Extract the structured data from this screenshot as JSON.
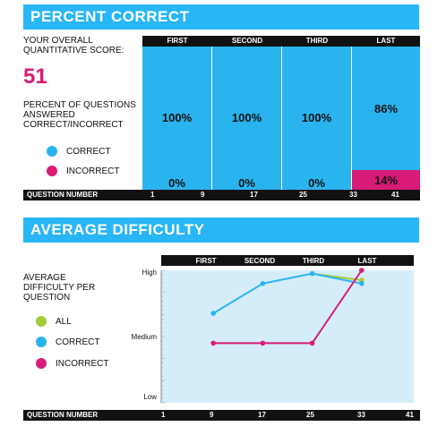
{
  "pc": {
    "title": "PERCENT CORRECT",
    "score_label": "YOUR OVERALL QUANTITATIVE SCORE:",
    "score": "51",
    "pct_label": "PERCENT OF QUESTIONS ANSWERED CORRECT/INCORRECT",
    "legend": [
      {
        "label": "CORRECT",
        "color": "#2ab4ef"
      },
      {
        "label": "INCORRECT",
        "color": "#d81b77"
      }
    ],
    "sections": [
      {
        "name": "FIRST",
        "correct": 100,
        "incorrect": 0,
        "correct_label": "100%",
        "incorrect_label": "0%"
      },
      {
        "name": "SECOND",
        "correct": 100,
        "incorrect": 0,
        "correct_label": "100%",
        "incorrect_label": "0%"
      },
      {
        "name": "THIRD",
        "correct": 100,
        "incorrect": 0,
        "correct_label": "100%",
        "incorrect_label": "0%"
      },
      {
        "name": "LAST",
        "correct": 86,
        "incorrect": 14,
        "correct_label": "86%",
        "incorrect_label": "14%"
      }
    ],
    "question_label": "QUESTION NUMBER",
    "question_ticks": [
      "1",
      "9",
      "17",
      "25",
      "33",
      "41"
    ]
  },
  "ad": {
    "title": "AVERAGE DIFFICULTY",
    "label": "AVERAGE DIFFICULTY PER QUESTION",
    "legend": [
      {
        "label": "ALL",
        "color": "#a4cc3a"
      },
      {
        "label": "CORRECT",
        "color": "#2ab4ef"
      },
      {
        "label": "INCORRECT",
        "color": "#d81b77"
      }
    ],
    "sections": [
      "FIRST",
      "SECOND",
      "THIRD",
      "LAST"
    ],
    "question_label": "QUESTION NUMBER",
    "question_ticks": [
      "1",
      "9",
      "17",
      "25",
      "33",
      "41"
    ]
  },
  "chart_data": {
    "type": "line",
    "x": [
      9,
      17,
      25,
      33
    ],
    "ylabel_ticks": [
      "High",
      "Medium",
      "Low"
    ],
    "ylim": [
      0,
      2
    ],
    "series": [
      {
        "name": "ALL",
        "color": "#a4cc3a",
        "values": [
          null,
          null,
          1.95,
          1.85
        ]
      },
      {
        "name": "CORRECT",
        "color": "#2ab4ef",
        "values": [
          1.35,
          1.8,
          1.95,
          1.8
        ]
      },
      {
        "name": "INCORRECT",
        "color": "#d81b77",
        "values": [
          0.9,
          0.9,
          0.9,
          2.0
        ]
      }
    ],
    "xlim": [
      1,
      41
    ]
  }
}
